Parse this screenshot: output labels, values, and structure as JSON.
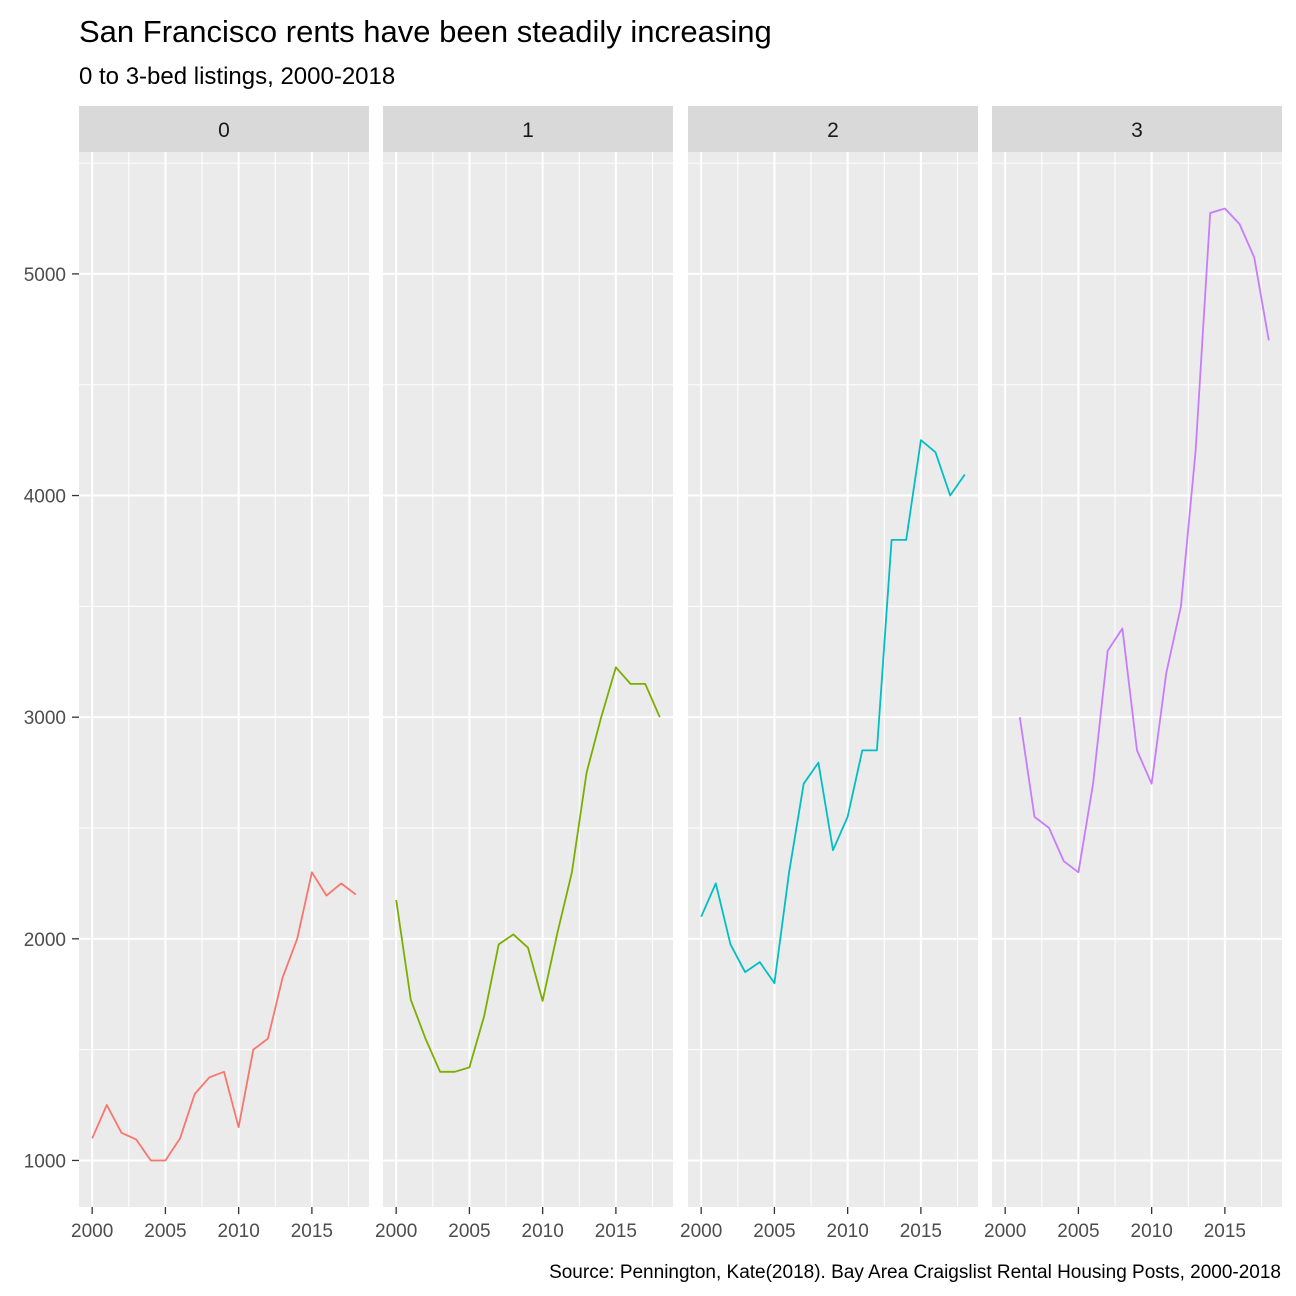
{
  "chart_data": {
    "type": "line",
    "title": "San Francisco rents have been steadily increasing",
    "subtitle": "0 to 3-bed listings, 2000-2018",
    "caption": "Source: Pennington, Kate(2018). Bay Area Craigslist Rental Housing Posts, 2000-2018",
    "xlabel": "",
    "ylabel": "",
    "xlim": [
      1999.1,
      2018.9
    ],
    "ylim": [
      790,
      5550
    ],
    "x_ticks": [
      2000,
      2005,
      2010,
      2015
    ],
    "y_ticks": [
      1000,
      2000,
      3000,
      4000,
      5000
    ],
    "grid": true,
    "legend": "none",
    "panels": [
      {
        "label": "0",
        "color": "#F8766D",
        "x": [
          2000,
          2001,
          2002,
          2003,
          2004,
          2005,
          2006,
          2007,
          2008,
          2009,
          2010,
          2011,
          2012,
          2013,
          2014,
          2015,
          2016,
          2017,
          2018
        ],
        "y": [
          1100,
          1250,
          1125,
          1095,
          1000,
          1000,
          1100,
          1300,
          1375,
          1400,
          1150,
          1500,
          1550,
          1825,
          2000,
          2300,
          2195,
          2250,
          2200
        ]
      },
      {
        "label": "1",
        "color": "#7CAE00",
        "x": [
          2000,
          2001,
          2002,
          2003,
          2004,
          2005,
          2006,
          2007,
          2008,
          2009,
          2010,
          2011,
          2012,
          2013,
          2014,
          2015,
          2016,
          2017,
          2018
        ],
        "y": [
          2175,
          1725,
          1550,
          1400,
          1400,
          1420,
          1650,
          1975,
          2020,
          1960,
          1720,
          2025,
          2300,
          2750,
          3000,
          3225,
          3150,
          3150,
          3000
        ]
      },
      {
        "label": "2",
        "color": "#00BFC4",
        "x": [
          2000,
          2001,
          2002,
          2003,
          2004,
          2005,
          2006,
          2007,
          2008,
          2009,
          2010,
          2011,
          2012,
          2013,
          2014,
          2015,
          2016,
          2017,
          2018
        ],
        "y": [
          2100,
          2250,
          1975,
          1850,
          1895,
          1800,
          2300,
          2700,
          2795,
          2400,
          2550,
          2850,
          2850,
          3800,
          3800,
          4250,
          4195,
          4000,
          4095
        ]
      },
      {
        "label": "3",
        "color": "#C77CFF",
        "x": [
          2001,
          2002,
          2003,
          2004,
          2005,
          2006,
          2007,
          2008,
          2009,
          2010,
          2011,
          2012,
          2013,
          2014,
          2015,
          2016,
          2017,
          2018
        ],
        "y": [
          3000,
          2550,
          2500,
          2350,
          2300,
          2700,
          3300,
          3400,
          2850,
          2700,
          3200,
          3500,
          4200,
          5275,
          5295,
          5225,
          5075,
          4700
        ]
      }
    ]
  }
}
